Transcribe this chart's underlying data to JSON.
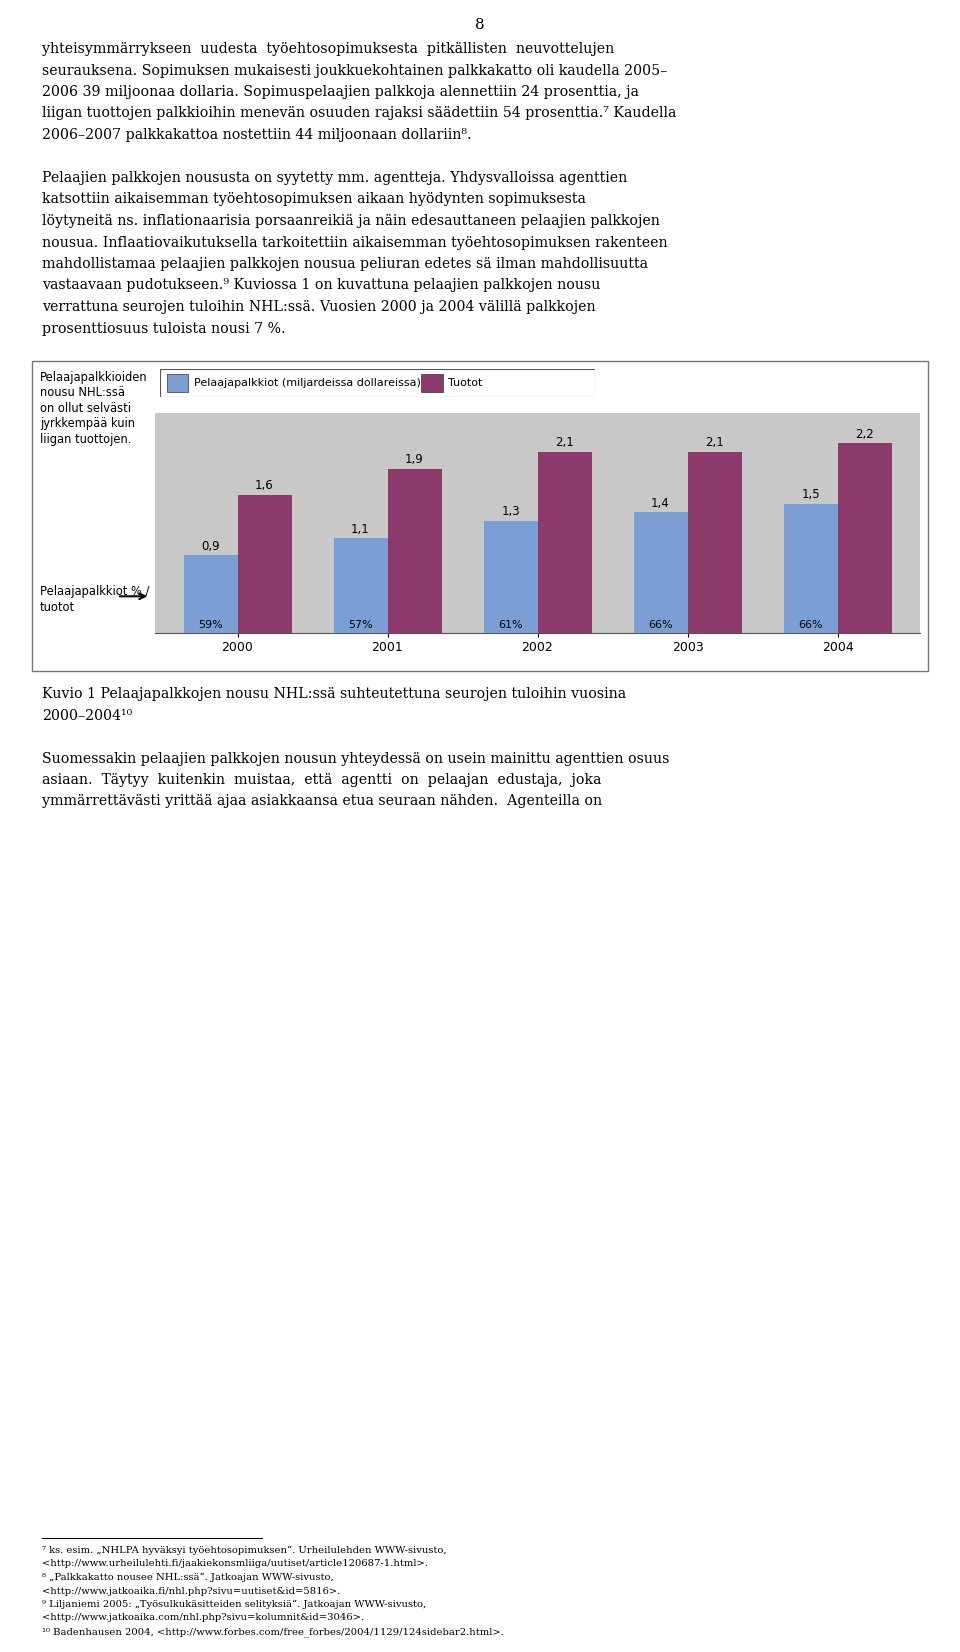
{
  "years": [
    "2000",
    "2001",
    "2002",
    "2003",
    "2004"
  ],
  "salaries": [
    0.9,
    1.1,
    1.3,
    1.4,
    1.5
  ],
  "revenues": [
    1.6,
    1.9,
    2.1,
    2.1,
    2.2
  ],
  "percentages": [
    "59%",
    "57%",
    "61%",
    "66%",
    "66%"
  ],
  "salary_color": "#7b9fd4",
  "revenue_color": "#8b3a6b",
  "plot_bg_color": "#c8c8c8",
  "legend_salary_label": "Pelaajapalkkiot (miljardeissa dollareissa)",
  "legend_revenue_label": "Tuotot",
  "left_text_lines": [
    "Pelaajapalkkioiden",
    "nousu NHL:ssä",
    "on ollut selvästi",
    "jyrkkempää kuin",
    "liigan tuottojen."
  ],
  "bottom_left_label_line1": "Pelaajapalkkiot % /",
  "bottom_left_label_line2": "tuotot",
  "caption_line1": "Kuvio 1 Pelaajapalkkojen nousu NHL:ssä suhteutettuna seurojen tuloihin vuosina",
  "caption_line2": "2000–2004¹⁰",
  "page_number": "8",
  "para1_lines": [
    "yhteisymmärrykseen  uudesta  työehtosopimuksesta  pitkällisten  neuvottelujen",
    "seurauksena. Sopimuksen mukaisesti joukkuekohtainen palkkakatto oli kaudella 2005–",
    "2006 39 miljoonaa dollaria. Sopimuspelaajien palkkoja alennettiin 24 prosenttia, ja",
    "liigan tuottojen palkkioihin menevän osuuden rajaksi säädettiin 54 prosenttia.⁷ Kaudella",
    "2006–2007 palkkakattoa nostettiin 44 miljoonaan dollariin⁸."
  ],
  "para2_lines": [
    "Pelaajien palkkojen noususta on syytetty mm. agentteja. Yhdysvalloissa agenttien",
    "katsottiin aikaisemman työehtosopimuksen aikaan hyödynten sopimuksesta",
    "löytyneitä ns. inflationaarisia porsaanreikiä ja näin edesauttaneen pelaajien palkkojen",
    "nousua. Inflaatiovaikutuksella tarkoitettiin aikaisemman työehtosopimuksen rakenteen",
    "mahdollistamaa pelaajien palkkojen nousua peliuran edetes sä ilman mahdollisuutta",
    "vastaavaan pudotukseen.⁹ Kuviossa 1 on kuvattuna pelaajien palkkojen nousu",
    "verrattuna seurojen tuloihin NHL:ssä. Vuosien 2000 ja 2004 välillä palkkojen",
    "prosenttiosuus tuloista nousi 7 %."
  ],
  "para3_lines": [
    "Suomessakin pelaajien palkkojen nousun yhteydessä on usein mainittu agenttien osuus",
    "asiaan.  Täytyy  kuitenkin  muistaa,  että  agentti  on  pelaajan  edustaja,  joka",
    "ymmärrettävästi yrittää ajaa asiakkaansa etua seuraan nähden.  Agenteilla on"
  ],
  "footnotes": [
    "⁷ ks. esim. „NHLPA hyväksyi työehtosopimuksen“. Urheilulehden WWW-sivusto,",
    "<http://www.urheilulehti.fi/jaakiekonsmliiga/uutiset/article120687-1.html>.",
    "⁸ „Palkkakatto nousee NHL:ssä“. Jatkoajan WWW-sivusto,",
    "<http://www.jatkoaika.fi/nhl.php?sivu=uutiset&id=5816>.",
    "⁹ Liljaniemi 2005: „Työsulkukäsitteiden selityksiä“. Jatkoajan WWW-sivusto,",
    "<http://www.jatkoaika.com/nhl.php?sivu=kolumnit&id=3046>.",
    "¹⁰ Badenhausen 2004, <http://www.forbes.com/free_forbes/2004/1129/124sidebar2.html>."
  ]
}
